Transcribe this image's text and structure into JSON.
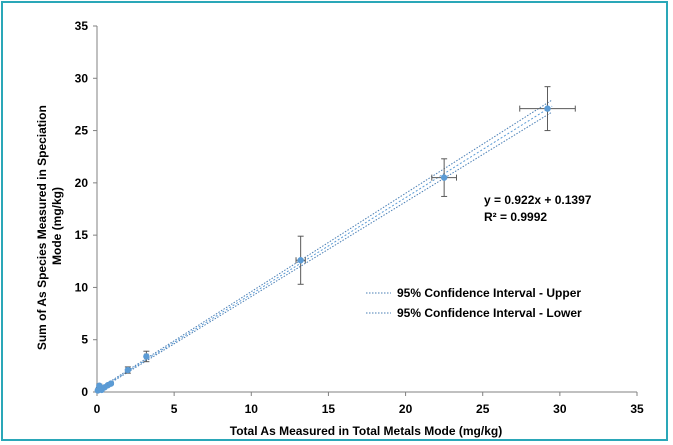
{
  "chart_data": {
    "type": "scatter",
    "title": "",
    "xlabel": "Total As Measured in Total Metals Mode (mg/kg)",
    "ylabel_lines": [
      "Sum of As Species Measured in Speciation",
      "Mode (mg/kg)"
    ],
    "xlim": [
      0,
      35
    ],
    "ylim": [
      0,
      35
    ],
    "x_ticks": [
      "0",
      "5",
      "10",
      "15",
      "20",
      "25",
      "30",
      "35"
    ],
    "y_ticks": [
      "0",
      "5",
      "10",
      "15",
      "20",
      "25",
      "30",
      "35"
    ],
    "grid": false,
    "point_color": "#5b9bd5",
    "error_bar_color": "#595959",
    "series": [
      {
        "points": [
          {
            "x": 0.05,
            "y": 0.15,
            "xerr": 0,
            "yerr": 0
          },
          {
            "x": 0.1,
            "y": 0.3,
            "xerr": 0,
            "yerr": 0
          },
          {
            "x": 0.15,
            "y": 0.6,
            "xerr": 0,
            "yerr": 0.15
          },
          {
            "x": 0.3,
            "y": 0.2,
            "xerr": 0,
            "yerr": 0
          },
          {
            "x": 0.5,
            "y": 0.45,
            "xerr": 0,
            "yerr": 0
          },
          {
            "x": 0.7,
            "y": 0.65,
            "xerr": 0,
            "yerr": 0
          },
          {
            "x": 0.9,
            "y": 0.8,
            "xerr": 0,
            "yerr": 0.1
          },
          {
            "x": 2.0,
            "y": 2.1,
            "xerr": 0.1,
            "yerr": 0.3
          },
          {
            "x": 3.2,
            "y": 3.4,
            "xerr": 0.1,
            "yerr": 0.5
          },
          {
            "x": 13.2,
            "y": 12.6,
            "xerr": 0.3,
            "yerr": 2.3
          },
          {
            "x": 22.5,
            "y": 20.5,
            "xerr": 0.8,
            "yerr": 1.8
          },
          {
            "x": 29.2,
            "y": 27.1,
            "xerr": 1.8,
            "yerr": 2.1
          }
        ]
      }
    ],
    "lines": [
      {
        "name": "95% Confidence Interval - Upper",
        "slope": 0.94,
        "intercept": 0.2,
        "color": "#4a7fb5",
        "dash": "1.5,1.5"
      },
      {
        "name": "95% Confidence Interval - Lower",
        "slope": 0.905,
        "intercept": 0.08,
        "color": "#4a7fb5",
        "dash": "1.5,1.5"
      },
      {
        "name": "trend",
        "slope": 0.922,
        "intercept": 0.1397,
        "color": "#5b9bd5",
        "dash": "2,2"
      }
    ],
    "legend": {
      "placement": "middle-right",
      "entries": [
        "95% Confidence Interval - Upper",
        "95% Confidence Interval - Lower"
      ]
    },
    "equation": "y = 0.922x + 0.1397",
    "r_squared": "R² = 0.9992"
  }
}
